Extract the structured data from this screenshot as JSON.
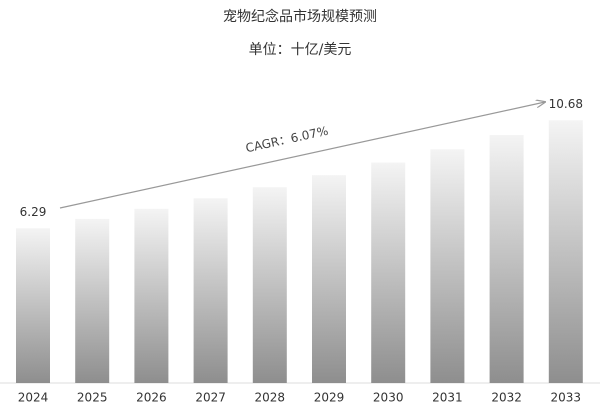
{
  "chart_data": {
    "type": "bar",
    "title": "宠物纪念品市场规模预测",
    "subtitle": "单位：十亿/美元",
    "annotation": "CAGR：6.07%",
    "categories": [
      "2024",
      "2025",
      "2026",
      "2027",
      "2028",
      "2029",
      "2030",
      "2031",
      "2032",
      "2033"
    ],
    "values": [
      6.29,
      6.67,
      7.08,
      7.51,
      7.96,
      8.45,
      8.96,
      9.5,
      10.08,
      10.68
    ],
    "value_labels": [
      "6.29",
      null,
      null,
      null,
      null,
      null,
      null,
      null,
      null,
      "10.68"
    ]
  }
}
